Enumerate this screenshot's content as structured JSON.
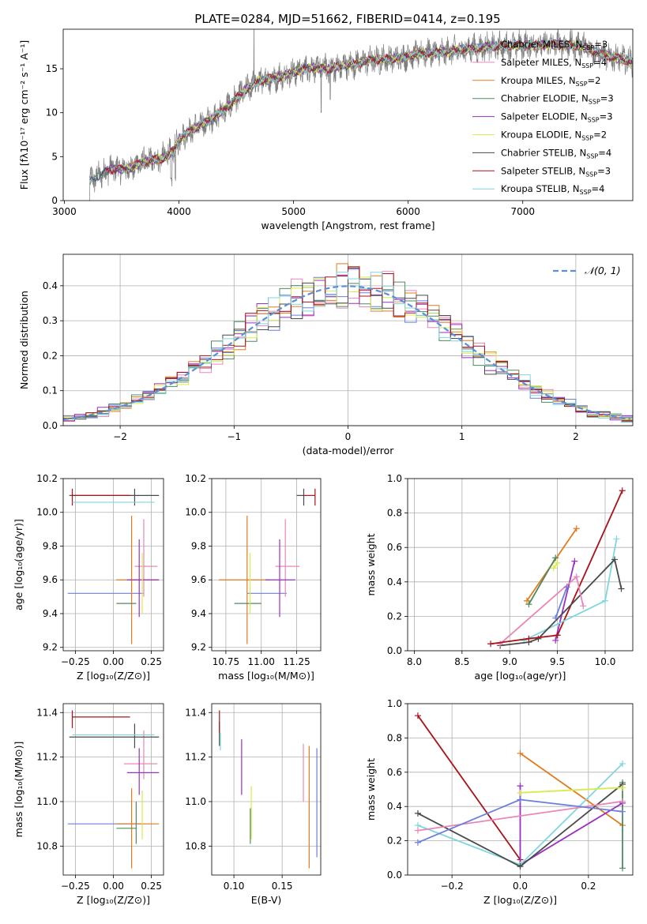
{
  "figure_title": "PLATE=0284, MJD=51662, FIBERID=0414, z=0.195",
  "colors": {
    "chabrier_miles": "#6a7fdb",
    "salpeter_miles": "#e887b8",
    "kroupa_miles": "#e07b1e",
    "chabrier_elodie": "#4f8a5e",
    "salpeter_elodie": "#9b2fc0",
    "kroupa_elodie": "#d6ec4a",
    "chabrier_stelib": "#4a4a4a",
    "salpeter_stelib": "#a8141a",
    "kroupa_stelib": "#7fd6e0",
    "data": "#7f7f7f",
    "normal": "#5b8fd6"
  },
  "chart_data": [
    {
      "id": "spectrum",
      "type": "line",
      "xlabel": "wavelength [Angstrom, rest frame]",
      "ylabel": "Flux [fλ10⁻¹⁷ erg cm⁻² s⁻¹ A⁻¹]",
      "xlim": [
        2990,
        7960
      ],
      "ylim": [
        0,
        19.5
      ],
      "xticks": [
        3000,
        4000,
        5000,
        6000,
        7000
      ],
      "yticks": [
        0,
        5,
        10,
        15
      ],
      "legend_position": "top-right",
      "legend": [
        {
          "label": "Chabrier MILES, N",
          "sub": "SSP",
          "suffix": "=3",
          "color": "chabrier_miles"
        },
        {
          "label": "Salpeter MILES, N",
          "sub": "SSP",
          "suffix": "=4",
          "color": "salpeter_miles"
        },
        {
          "label": "Kroupa MILES, N",
          "sub": "SSP",
          "suffix": "=2",
          "color": "kroupa_miles"
        },
        {
          "label": "Chabrier ELODIE, N",
          "sub": "SSP",
          "suffix": "=3",
          "color": "chabrier_elodie"
        },
        {
          "label": "Salpeter ELODIE, N",
          "sub": "SSP",
          "suffix": "=3",
          "color": "salpeter_elodie"
        },
        {
          "label": "Kroupa ELODIE, N",
          "sub": "SSP",
          "suffix": "=2",
          "color": "kroupa_elodie"
        },
        {
          "label": "Chabrier STELIB, N",
          "sub": "SSP",
          "suffix": "=4",
          "color": "chabrier_stelib"
        },
        {
          "label": "Salpeter STELIB, N",
          "sub": "SSP",
          "suffix": "=3",
          "color": "salpeter_stelib"
        },
        {
          "label": "Kroupa STELIB, N",
          "sub": "SSP",
          "suffix": "=4",
          "color": "kroupa_stelib"
        }
      ],
      "continuum": [
        [
          3220,
          2.2
        ],
        [
          3400,
          3.6
        ],
        [
          3550,
          3.6
        ],
        [
          3700,
          4.4
        ],
        [
          3850,
          4.8
        ],
        [
          3950,
          5.6
        ],
        [
          4000,
          7.0
        ],
        [
          4100,
          8.0
        ],
        [
          4250,
          9.0
        ],
        [
          4400,
          10.4
        ],
        [
          4500,
          11.6
        ],
        [
          4600,
          12.8
        ],
        [
          4700,
          13.6
        ],
        [
          4850,
          14.0
        ],
        [
          5000,
          14.6
        ],
        [
          5150,
          15.2
        ],
        [
          5300,
          15.0
        ],
        [
          5500,
          15.5
        ],
        [
          5700,
          16.0
        ],
        [
          5900,
          16.2
        ],
        [
          6100,
          16.7
        ],
        [
          6300,
          16.9
        ],
        [
          6500,
          17.2
        ],
        [
          6700,
          17.5
        ],
        [
          6900,
          17.6
        ],
        [
          7100,
          17.7
        ],
        [
          7300,
          17.8
        ],
        [
          7500,
          17.6
        ],
        [
          7700,
          16.6
        ],
        [
          7960,
          15.8
        ]
      ]
    },
    {
      "id": "residuals",
      "type": "step",
      "xlabel": "(data-model)/error",
      "ylabel": "Normed distribution",
      "xlim": [
        -2.5,
        2.5
      ],
      "ylim": [
        0,
        0.49
      ],
      "xticks": [
        -2,
        -1,
        0,
        1,
        2
      ],
      "yticks": [
        0.0,
        0.1,
        0.2,
        0.3,
        0.4
      ],
      "legend_position": "top-right",
      "legend_label": "𝒩(0, 1)",
      "bin_width": 0.1
    },
    {
      "id": "age_vs_Z",
      "type": "errorbar",
      "xlabel": "Z [log₁₀(Z/Z⊙)]",
      "ylabel": "age  [log₁₀(age/yr)]",
      "xlim": [
        -0.33,
        0.33
      ],
      "ylim": [
        9.18,
        10.2
      ],
      "xticks": [
        -0.25,
        0.0,
        0.25
      ],
      "yticks": [
        9.2,
        9.4,
        9.6,
        9.8,
        10.0,
        10.2
      ],
      "points": [
        {
          "color": "chabrier_miles",
          "x": 0.13,
          "xerr": [
            0.43,
            0.07
          ],
          "y": 9.52,
          "yerr": [
            0.0,
            0.0
          ]
        },
        {
          "color": "salpeter_miles",
          "x": 0.2,
          "xerr": [
            0.06,
            0.09
          ],
          "y": 9.68,
          "yerr": [
            0.18,
            0.28
          ]
        },
        {
          "color": "kroupa_miles",
          "x": 0.12,
          "xerr": [
            0.1,
            0.18
          ],
          "y": 9.6,
          "yerr": [
            0.38,
            0.38
          ]
        },
        {
          "color": "chabrier_elodie",
          "x": 0.15,
          "xerr": [
            0.13,
            0.0
          ],
          "y": 9.46,
          "yerr": [
            0.0,
            0.0
          ]
        },
        {
          "color": "salpeter_elodie",
          "x": 0.17,
          "xerr": [
            0.08,
            0.13
          ],
          "y": 9.6,
          "yerr": [
            0.22,
            0.24
          ]
        },
        {
          "color": "kroupa_elodie",
          "x": 0.19,
          "xerr": [
            0.0,
            0.0
          ],
          "y": 9.6,
          "yerr": [
            0.2,
            0.16
          ]
        },
        {
          "color": "chabrier_stelib",
          "x": 0.14,
          "xerr": [
            0.43,
            0.16
          ],
          "y": 10.1,
          "yerr": [
            0.06,
            0.04
          ]
        },
        {
          "color": "salpeter_stelib",
          "x": -0.27,
          "xerr": [
            0.0,
            0.38
          ],
          "y": 10.1,
          "yerr": [
            0.06,
            0.04
          ]
        },
        {
          "color": "kroupa_stelib",
          "x": 0.18,
          "xerr": [
            0.45,
            0.09
          ],
          "y": 10.06,
          "yerr": [
            0.0,
            0.0
          ]
        }
      ]
    },
    {
      "id": "age_vs_mass",
      "type": "errorbar",
      "xlabel": "mass [log₁₀(M/M⊙)]",
      "ylabel": "",
      "xlim": [
        10.65,
        11.42
      ],
      "ylim": [
        9.18,
        10.2
      ],
      "xticks": [
        10.75,
        11.0,
        11.25
      ],
      "yticks": [
        9.2,
        9.4,
        9.6,
        9.8,
        10.0,
        10.2
      ],
      "points": [
        {
          "color": "chabrier_miles",
          "x": 10.9,
          "xerr": [
            0.0,
            0.28
          ],
          "y": 9.52,
          "yerr": [
            0.0,
            0.0
          ]
        },
        {
          "color": "salpeter_miles",
          "x": 11.17,
          "xerr": [
            0.07,
            0.1
          ],
          "y": 9.68,
          "yerr": [
            0.18,
            0.28
          ]
        },
        {
          "color": "kroupa_miles",
          "x": 10.9,
          "xerr": [
            0.2,
            0.16
          ],
          "y": 9.6,
          "yerr": [
            0.38,
            0.38
          ]
        },
        {
          "color": "chabrier_elodie",
          "x": 10.88,
          "xerr": [
            0.07,
            0.12
          ],
          "y": 9.46,
          "yerr": [
            0.0,
            0.0
          ]
        },
        {
          "color": "salpeter_elodie",
          "x": 11.13,
          "xerr": [
            0.1,
            0.11
          ],
          "y": 9.6,
          "yerr": [
            0.22,
            0.24
          ]
        },
        {
          "color": "kroupa_elodie",
          "x": 10.92,
          "xerr": [
            0.0,
            0.0
          ],
          "y": 9.6,
          "yerr": [
            0.2,
            0.16
          ]
        },
        {
          "color": "chabrier_stelib",
          "x": 11.3,
          "xerr": [
            0.05,
            0.0
          ],
          "y": 10.1,
          "yerr": [
            0.06,
            0.04
          ]
        },
        {
          "color": "salpeter_stelib",
          "x": 11.38,
          "xerr": [
            0.08,
            0.0
          ],
          "y": 10.1,
          "yerr": [
            0.06,
            0.04
          ]
        },
        {
          "color": "kroupa_stelib",
          "x": 11.3,
          "xerr": [
            0.0,
            0.0
          ],
          "y": 10.06,
          "yerr": [
            0.0,
            0.0
          ]
        }
      ]
    },
    {
      "id": "massweight_vs_age",
      "type": "line",
      "xlabel": "age  [log₁₀(age/yr)]",
      "ylabel": "mass weight",
      "xlim": [
        7.93,
        10.29
      ],
      "ylim": [
        0.0,
        1.0
      ],
      "xticks": [
        8.0,
        8.5,
        9.0,
        9.5,
        10.0
      ],
      "yticks": [
        0.0,
        0.2,
        0.4,
        0.6,
        0.8,
        1.0
      ],
      "series": [
        {
          "color": "salpeter_stelib",
          "x": [
            9.5,
            10.18
          ],
          "y": [
            0.09,
            0.93
          ]
        },
        {
          "color": "kroupa_miles",
          "x": [
            9.18,
            9.7
          ],
          "y": [
            0.29,
            0.71
          ]
        },
        {
          "color": "chabrier_elodie",
          "x": [
            9.2,
            9.48
          ],
          "y": [
            0.27,
            0.54
          ]
        },
        {
          "color": "salpeter_elodie",
          "x": [
            9.48,
            9.68
          ],
          "y": [
            0.06,
            0.52
          ]
        },
        {
          "color": "kroupa_stelib",
          "x": [
            9.15,
            10.0,
            10.12
          ],
          "y": [
            0.06,
            0.29,
            0.65
          ]
        },
        {
          "color": "chabrier_stelib",
          "x": [
            8.9,
            9.2,
            9.3,
            10.1,
            10.17
          ],
          "y": [
            0.03,
            0.05,
            0.07,
            0.53,
            0.36
          ]
        },
        {
          "color": "salpeter_miles",
          "x": [
            8.9,
            9.7,
            9.77
          ],
          "y": [
            0.04,
            0.43,
            0.26
          ]
        },
        {
          "color": "chabrier_miles",
          "x": [
            9.48,
            9.6
          ],
          "y": [
            0.19,
            0.37
          ]
        },
        {
          "color": "kroupa_elodie",
          "x": [
            9.46,
            9.5
          ],
          "y": [
            0.48,
            0.51
          ]
        },
        {
          "color": "salpeter_stelib",
          "x": [
            8.8,
            9.2,
            9.5
          ],
          "y": [
            0.04,
            0.07,
            0.09
          ]
        }
      ]
    },
    {
      "id": "mass_vs_Z",
      "type": "errorbar",
      "xlabel": "Z [log₁₀(Z/Z⊙)]",
      "ylabel": "mass [log₁₀(M/M⊙)]",
      "xlim": [
        -0.33,
        0.33
      ],
      "ylim": [
        10.67,
        11.44
      ],
      "xticks": [
        -0.25,
        0.0,
        0.25
      ],
      "yticks": [
        10.8,
        11.0,
        11.2,
        11.4
      ],
      "points": [
        {
          "color": "chabrier_miles",
          "x": 0.13,
          "xerr": [
            0.43,
            0.07
          ],
          "y": 10.9,
          "yerr": [
            0.0,
            0.0
          ]
        },
        {
          "color": "salpeter_miles",
          "x": 0.2,
          "xerr": [
            0.13,
            0.09
          ],
          "y": 11.17,
          "yerr": [
            0.07,
            0.15
          ]
        },
        {
          "color": "kroupa_miles",
          "x": 0.12,
          "xerr": [
            0.1,
            0.18
          ],
          "y": 10.9,
          "yerr": [
            0.2,
            0.16
          ]
        },
        {
          "color": "chabrier_elodie",
          "x": 0.15,
          "xerr": [
            0.13,
            0.0
          ],
          "y": 10.88,
          "yerr": [
            0.07,
            0.12
          ]
        },
        {
          "color": "salpeter_elodie",
          "x": 0.17,
          "xerr": [
            0.08,
            0.13
          ],
          "y": 11.13,
          "yerr": [
            0.1,
            0.11
          ]
        },
        {
          "color": "kroupa_elodie",
          "x": 0.19,
          "xerr": [
            0.0,
            0.0
          ],
          "y": 10.95,
          "yerr": [
            0.12,
            0.1
          ]
        },
        {
          "color": "chabrier_stelib",
          "x": 0.14,
          "xerr": [
            0.43,
            0.16
          ],
          "y": 11.29,
          "yerr": [
            0.05,
            0.06
          ]
        },
        {
          "color": "salpeter_stelib",
          "x": -0.27,
          "xerr": [
            0.0,
            0.38
          ],
          "y": 11.38,
          "yerr": [
            0.05,
            0.03
          ]
        },
        {
          "color": "kroupa_stelib",
          "x": 0.18,
          "xerr": [
            0.45,
            0.09
          ],
          "y": 11.3,
          "yerr": [
            0.0,
            0.0
          ]
        }
      ]
    },
    {
      "id": "mass_vs_ebv",
      "type": "errorbar",
      "xlabel": "E(B-V)",
      "ylabel": "",
      "xlim": [
        0.077,
        0.19
      ],
      "ylim": [
        10.67,
        11.44
      ],
      "xticks": [
        0.1,
        0.15
      ],
      "yticks": [
        10.8,
        11.0,
        11.2,
        11.4
      ],
      "points": [
        {
          "color": "chabrier_miles",
          "x": 0.186,
          "xerr": [
            0.0,
            0.0
          ],
          "y": 11.0,
          "yerr": [
            0.25,
            0.24
          ]
        },
        {
          "color": "salpeter_miles",
          "x": 0.172,
          "xerr": [
            0.0,
            0.0
          ],
          "y": 11.09,
          "yerr": [
            0.09,
            0.17
          ]
        },
        {
          "color": "kroupa_miles",
          "x": 0.178,
          "xerr": [
            0.0,
            0.0
          ],
          "y": 11.0,
          "yerr": [
            0.3,
            0.25
          ]
        },
        {
          "color": "chabrier_elodie",
          "x": 0.117,
          "xerr": [
            0.0,
            0.0
          ],
          "y": 10.85,
          "yerr": [
            0.04,
            0.12
          ]
        },
        {
          "color": "salpeter_elodie",
          "x": 0.108,
          "xerr": [
            0.0,
            0.0
          ],
          "y": 11.13,
          "yerr": [
            0.1,
            0.15
          ]
        },
        {
          "color": "kroupa_elodie",
          "x": 0.118,
          "xerr": [
            0.0,
            0.0
          ],
          "y": 10.95,
          "yerr": [
            0.12,
            0.12
          ]
        },
        {
          "color": "chabrier_stelib",
          "x": 0.085,
          "xerr": [
            0.0,
            0.0
          ],
          "y": 11.3,
          "yerr": [
            0.05,
            0.06
          ]
        },
        {
          "color": "salpeter_stelib",
          "x": 0.085,
          "xerr": [
            0.0,
            0.0
          ],
          "y": 11.36,
          "yerr": [
            0.05,
            0.05
          ]
        },
        {
          "color": "kroupa_stelib",
          "x": 0.086,
          "xerr": [
            0.0,
            0.0
          ],
          "y": 11.27,
          "yerr": [
            0.04,
            0.04
          ]
        }
      ]
    },
    {
      "id": "massweight_vs_Z",
      "type": "line",
      "xlabel": "Z [log₁₀(Z/Z⊙)]",
      "ylabel": "mass weight",
      "xlim": [
        -0.33,
        0.33
      ],
      "ylim": [
        0.0,
        1.0
      ],
      "xticks": [
        -0.2,
        0.0,
        0.2
      ],
      "yticks": [
        0.0,
        0.2,
        0.4,
        0.6,
        0.8,
        1.0
      ],
      "series": [
        {
          "color": "salpeter_stelib",
          "x": [
            -0.3,
            0.0,
            0.0
          ],
          "y": [
            0.93,
            0.09,
            0.06
          ]
        },
        {
          "color": "kroupa_miles",
          "x": [
            0.0,
            0.3
          ],
          "y": [
            0.71,
            0.29
          ]
        },
        {
          "color": "chabrier_elodie",
          "x": [
            0.3,
            0.3
          ],
          "y": [
            0.04,
            0.54
          ]
        },
        {
          "color": "salpeter_elodie",
          "x": [
            0.0,
            0.0,
            0.3
          ],
          "y": [
            0.52,
            0.06,
            0.42
          ]
        },
        {
          "color": "kroupa_stelib",
          "x": [
            -0.3,
            0.0,
            0.3
          ],
          "y": [
            0.29,
            0.06,
            0.65
          ]
        },
        {
          "color": "chabrier_stelib",
          "x": [
            -0.3,
            0.0,
            0.3
          ],
          "y": [
            0.36,
            0.05,
            0.53
          ]
        },
        {
          "color": "salpeter_miles",
          "x": [
            -0.3,
            0.3
          ],
          "y": [
            0.26,
            0.43
          ]
        },
        {
          "color": "chabrier_miles",
          "x": [
            -0.3,
            0.0,
            0.3
          ],
          "y": [
            0.19,
            0.44,
            0.37
          ]
        },
        {
          "color": "kroupa_elodie",
          "x": [
            0.0,
            0.3
          ],
          "y": [
            0.48,
            0.51
          ]
        }
      ]
    }
  ]
}
